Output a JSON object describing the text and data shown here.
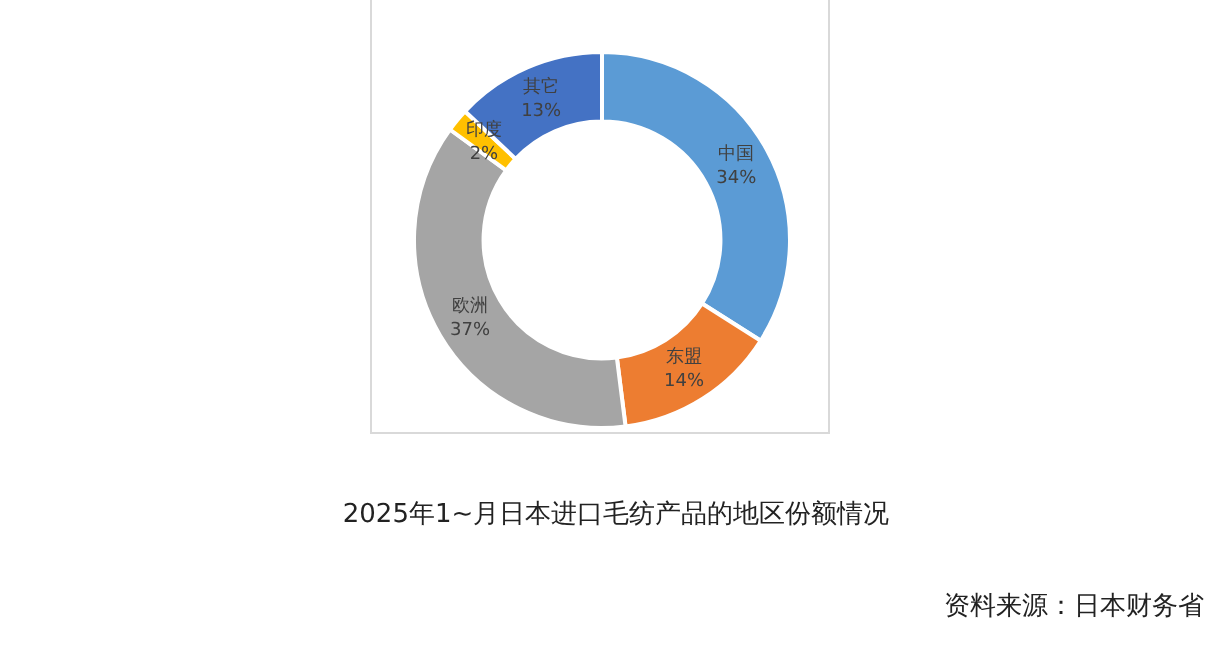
{
  "chart_data": {
    "type": "donut",
    "title": "2025年1~月日本进口毛纺产品的地区份额情况",
    "categories": [
      "中国",
      "东盟",
      "欧洲",
      "印度",
      "其它"
    ],
    "values": [
      34,
      14,
      37,
      2,
      13
    ],
    "value_labels": [
      "34%",
      "14%",
      "37%",
      "2%",
      "13%"
    ],
    "colors": [
      "#5b9bd5",
      "#ed7d31",
      "#a5a5a5",
      "#ffc000",
      "#4472c4"
    ],
    "legend": false,
    "annotations": [
      "资料来源：日本财务省"
    ]
  }
}
